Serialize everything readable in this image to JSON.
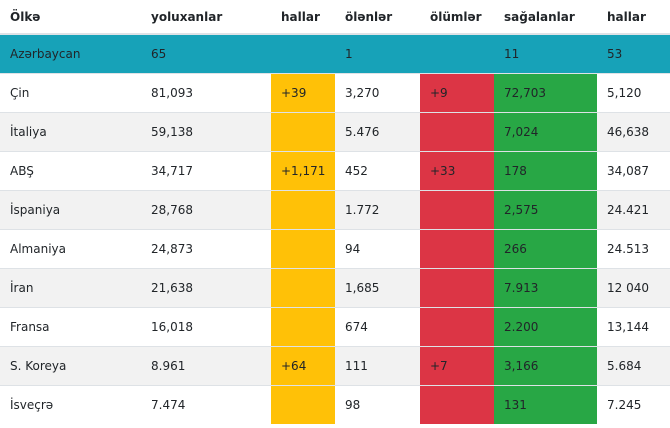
{
  "table": {
    "headers": [
      "Ölkə",
      "yoluxanlar",
      "hallar",
      "ölənlər",
      "ölümlər",
      "sağalanlar",
      "hallar"
    ],
    "rows": [
      {
        "country": "Azərbaycan",
        "cases": "65",
        "new_cases": "",
        "deaths": "1",
        "new_deaths": "",
        "recovered": "11",
        "active": "53"
      },
      {
        "country": "Çin",
        "cases": "81,093",
        "new_cases": "+39",
        "deaths": "3,270",
        "new_deaths": "+9",
        "recovered": "72,703",
        "active": "5,120"
      },
      {
        "country": "İtaliya",
        "cases": "59,138",
        "new_cases": "",
        "deaths": "5.476",
        "new_deaths": "",
        "recovered": "7,024",
        "active": "46,638"
      },
      {
        "country": "ABŞ",
        "cases": "34,717",
        "new_cases": "+1,171",
        "deaths": "452",
        "new_deaths": "+33",
        "recovered": "178",
        "active": "34,087"
      },
      {
        "country": "İspaniya",
        "cases": "28,768",
        "new_cases": "",
        "deaths": "1.772",
        "new_deaths": "",
        "recovered": "2,575",
        "active": "24.421"
      },
      {
        "country": "Almaniya",
        "cases": "24,873",
        "new_cases": "",
        "deaths": "94",
        "new_deaths": "",
        "recovered": "266",
        "active": "24.513"
      },
      {
        "country": "İran",
        "cases": "21,638",
        "new_cases": "",
        "deaths": "1,685",
        "new_deaths": "",
        "recovered": "7.913",
        "active": "12 040"
      },
      {
        "country": "Fransa",
        "cases": "16,018",
        "new_cases": "",
        "deaths": "674",
        "new_deaths": "",
        "recovered": "2.200",
        "active": "13,144"
      },
      {
        "country": "S. Koreya",
        "cases": "8.961",
        "new_cases": "+64",
        "deaths": "111",
        "new_deaths": "+7",
        "recovered": "3,166",
        "active": "5.684"
      },
      {
        "country": "İsveçrə",
        "cases": "7.474",
        "new_cases": "",
        "deaths": "98",
        "new_deaths": "",
        "recovered": "131",
        "active": "7.245"
      }
    ]
  },
  "colors": {
    "highlight_row": "#17a2b8",
    "new_cases": "#ffc107",
    "new_deaths": "#dc3545",
    "recovered": "#28a745",
    "striped_row": "#f2f2f2"
  }
}
